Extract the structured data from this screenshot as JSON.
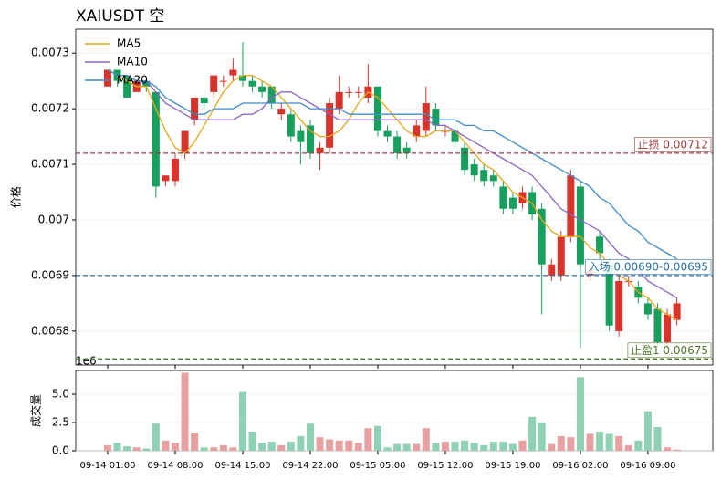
{
  "chart_data": [
    {
      "type": "candlestick",
      "title": "XAIUSDT  空",
      "y_label": "价格",
      "up_color": "#d9342b",
      "down_color": "#17a05d",
      "open": [
        0.00724,
        0.00727,
        0.00726,
        0.00723,
        0.00725,
        0.00723,
        0.00707,
        0.00707,
        0.00712,
        0.00718,
        0.00722,
        0.00723,
        0.00725,
        0.00726,
        0.00726,
        0.00725,
        0.00724,
        0.00724,
        0.00719,
        0.00719,
        0.00716,
        0.00717,
        0.00712,
        0.00713,
        0.0072,
        0.00723,
        0.00723,
        0.00722,
        0.00724,
        0.00716,
        0.00715,
        0.00713,
        0.00715,
        0.00716,
        0.0072,
        0.00716,
        0.00716,
        0.00713,
        0.0071,
        0.00709,
        0.00708,
        0.00706,
        0.00704,
        0.00703,
        0.00705,
        0.00702,
        0.0069,
        0.0069,
        0.00697,
        0.00706,
        0.0069,
        0.00697,
        0.00692,
        0.0068,
        0.00689,
        0.00688,
        0.00685,
        0.00684,
        0.00678,
        0.00682
      ],
      "high": [
        0.00727,
        0.00727,
        0.00726,
        0.00725,
        0.00725,
        0.00723,
        0.00708,
        0.00712,
        0.00716,
        0.00722,
        0.00722,
        0.00726,
        0.00726,
        0.00729,
        0.00732,
        0.00726,
        0.00725,
        0.00724,
        0.00721,
        0.0072,
        0.00717,
        0.00718,
        0.00714,
        0.00722,
        0.00726,
        0.00724,
        0.00724,
        0.00728,
        0.00724,
        0.00717,
        0.00716,
        0.00714,
        0.00718,
        0.00724,
        0.00721,
        0.00717,
        0.00717,
        0.00714,
        0.00711,
        0.0071,
        0.00709,
        0.00707,
        0.00705,
        0.00706,
        0.00706,
        0.00703,
        0.00693,
        0.00698,
        0.00709,
        0.00707,
        0.00692,
        0.00698,
        0.00693,
        0.0069,
        0.0069,
        0.00689,
        0.00686,
        0.00685,
        0.00684,
        0.00686
      ],
      "low": [
        0.00724,
        0.00724,
        0.00722,
        0.00723,
        0.00723,
        0.00704,
        0.00706,
        0.00706,
        0.00711,
        0.00717,
        0.0072,
        0.00722,
        0.00724,
        0.00725,
        0.00724,
        0.00723,
        0.00722,
        0.0072,
        0.00718,
        0.00714,
        0.0071,
        0.00711,
        0.00709,
        0.00712,
        0.00719,
        0.00722,
        0.00722,
        0.00721,
        0.00715,
        0.00714,
        0.00711,
        0.00711,
        0.00714,
        0.00715,
        0.00716,
        0.00715,
        0.00713,
        0.00708,
        0.00707,
        0.00706,
        0.00706,
        0.00701,
        0.00701,
        0.00702,
        0.007,
        0.00683,
        0.00689,
        0.00689,
        0.00696,
        0.00677,
        0.00689,
        0.00693,
        0.0068,
        0.00679,
        0.00688,
        0.00685,
        0.00682,
        0.00677,
        0.00677,
        0.00681
      ],
      "close": [
        0.00727,
        0.00725,
        0.00722,
        0.00725,
        0.00724,
        0.00706,
        0.00708,
        0.00711,
        0.00716,
        0.00722,
        0.00721,
        0.00726,
        0.00725,
        0.00727,
        0.00725,
        0.00724,
        0.00723,
        0.00721,
        0.0072,
        0.00715,
        0.00714,
        0.00712,
        0.00713,
        0.00721,
        0.00723,
        0.00723,
        0.00723,
        0.00724,
        0.00716,
        0.00715,
        0.00712,
        0.00712,
        0.00717,
        0.00721,
        0.00717,
        0.00716,
        0.00714,
        0.00709,
        0.00708,
        0.00707,
        0.00707,
        0.00702,
        0.00702,
        0.00705,
        0.00701,
        0.00692,
        0.00692,
        0.00697,
        0.00708,
        0.00692,
        0.00691,
        0.00694,
        0.00681,
        0.00689,
        0.00689,
        0.00686,
        0.00683,
        0.00678,
        0.00683,
        0.00685
      ],
      "series": [
        {
          "name": "MA5",
          "color": "#e6a817",
          "values": [
            0.00727,
            0.00726,
            0.00725,
            0.00724,
            0.00724,
            0.0072,
            0.00716,
            0.00713,
            0.00712,
            0.00714,
            0.00717,
            0.0072,
            0.00723,
            0.00725,
            0.00726,
            0.00726,
            0.00725,
            0.00724,
            0.00722,
            0.0072,
            0.00718,
            0.00716,
            0.00715,
            0.00715,
            0.00716,
            0.00718,
            0.00721,
            0.00723,
            0.00722,
            0.0072,
            0.00718,
            0.00716,
            0.00715,
            0.00715,
            0.00716,
            0.00716,
            0.00716,
            0.00714,
            0.00712,
            0.0071,
            0.00709,
            0.00707,
            0.00705,
            0.00704,
            0.00703,
            0.007,
            0.00698,
            0.00697,
            0.00697,
            0.00697,
            0.00695,
            0.00694,
            0.00692,
            0.0069,
            0.00689,
            0.00687,
            0.00686,
            0.00684,
            0.00683,
            0.00682
          ]
        },
        {
          "name": "MA10",
          "color": "#8c64c8",
          "values": [
            0.00727,
            0.00726,
            0.00726,
            0.00725,
            0.00725,
            0.00723,
            0.00721,
            0.0072,
            0.00719,
            0.00718,
            0.00718,
            0.00718,
            0.00718,
            0.00718,
            0.00719,
            0.00719,
            0.0072,
            0.00722,
            0.00723,
            0.00723,
            0.00722,
            0.00721,
            0.0072,
            0.00719,
            0.00718,
            0.00718,
            0.00718,
            0.00718,
            0.00718,
            0.00718,
            0.00718,
            0.00718,
            0.00718,
            0.00718,
            0.00717,
            0.00717,
            0.00716,
            0.00715,
            0.00714,
            0.00713,
            0.00712,
            0.00711,
            0.0071,
            0.00709,
            0.00708,
            0.00706,
            0.00704,
            0.00702,
            0.00701,
            0.007,
            0.00699,
            0.00698,
            0.00696,
            0.00694,
            0.00693,
            0.00691,
            0.00689,
            0.00688,
            0.00687,
            0.00686
          ]
        },
        {
          "name": "MA20",
          "color": "#3d8ccc",
          "values": [
            0.00727,
            0.00726,
            0.00726,
            0.00725,
            0.00725,
            0.00724,
            0.00722,
            0.00721,
            0.0072,
            0.00719,
            0.00719,
            0.0072,
            0.0072,
            0.0072,
            0.00721,
            0.00721,
            0.00721,
            0.00721,
            0.00721,
            0.00721,
            0.00721,
            0.0072,
            0.0072,
            0.0072,
            0.0072,
            0.00719,
            0.00719,
            0.00719,
            0.00719,
            0.00719,
            0.00719,
            0.00719,
            0.00719,
            0.00719,
            0.00718,
            0.00718,
            0.00718,
            0.00717,
            0.00717,
            0.00716,
            0.00716,
            0.00715,
            0.00714,
            0.00713,
            0.00712,
            0.00711,
            0.0071,
            0.00709,
            0.00708,
            0.00707,
            0.00706,
            0.00704,
            0.00703,
            0.00701,
            0.00699,
            0.00698,
            0.00696,
            0.00695,
            0.00694,
            0.00693
          ]
        }
      ],
      "hlines": [
        {
          "value": 0.00712,
          "label": "止损 0.00712",
          "color": "#9c3b3b"
        },
        {
          "value": 0.0069,
          "label": "入场 0.00690-0.00695",
          "color": "#2a6fa8"
        },
        {
          "value": 0.00675,
          "label": "止盈1 0.00675",
          "color": "#4d7a2a"
        }
      ],
      "ylim": [
        0.006739,
        0.007343
      ],
      "yticks": [
        0.0068,
        0.0069,
        0.007,
        0.0071,
        0.0072,
        0.0073
      ],
      "grid": true,
      "legend": "upper left"
    },
    {
      "type": "bar",
      "y_label": "成交量",
      "offset_label": "1e6",
      "up_color": "#e8a1a1",
      "down_color": "#8fd1b3",
      "categories": [
        "09-14 01:00",
        null,
        null,
        null,
        null,
        null,
        null,
        "09-14 08:00",
        null,
        null,
        null,
        null,
        null,
        null,
        "09-14 15:00",
        null,
        null,
        null,
        null,
        null,
        null,
        "09-14 22:00",
        null,
        null,
        null,
        null,
        null,
        null,
        "09-15 05:00",
        null,
        null,
        null,
        null,
        null,
        null,
        "09-15 12:00",
        null,
        null,
        null,
        null,
        null,
        null,
        "09-15 19:00",
        null,
        null,
        null,
        null,
        null,
        null,
        "09-16 02:00",
        null,
        null,
        null,
        null,
        null,
        null,
        "09-16 09:00",
        null,
        null,
        null
      ],
      "values": [
        0.5,
        0.7,
        0.4,
        0.3,
        0.2,
        2.4,
        0.9,
        0.7,
        6.9,
        1.6,
        0.3,
        0.3,
        0.5,
        0.3,
        5.2,
        1.7,
        0.7,
        0.8,
        0.5,
        0.8,
        1.3,
        2.4,
        1.2,
        1.0,
        0.9,
        0.9,
        0.7,
        2.0,
        2.2,
        0.3,
        0.6,
        0.6,
        0.6,
        2.0,
        0.7,
        0.8,
        0.8,
        0.9,
        0.7,
        0.5,
        0.8,
        0.8,
        0.6,
        0.9,
        3.0,
        2.5,
        0.6,
        1.3,
        1.2,
        6.5,
        1.5,
        1.7,
        1.5,
        1.3,
        0.5,
        0.9,
        3.5,
        2.1,
        0.3,
        0.1
      ],
      "ylim": [
        0,
        7.1
      ],
      "yticks": [
        {
          "value": 0,
          "label": "0.0"
        },
        2.5,
        {
          "value": 5,
          "label": "5.0"
        }
      ],
      "grid": true
    }
  ]
}
